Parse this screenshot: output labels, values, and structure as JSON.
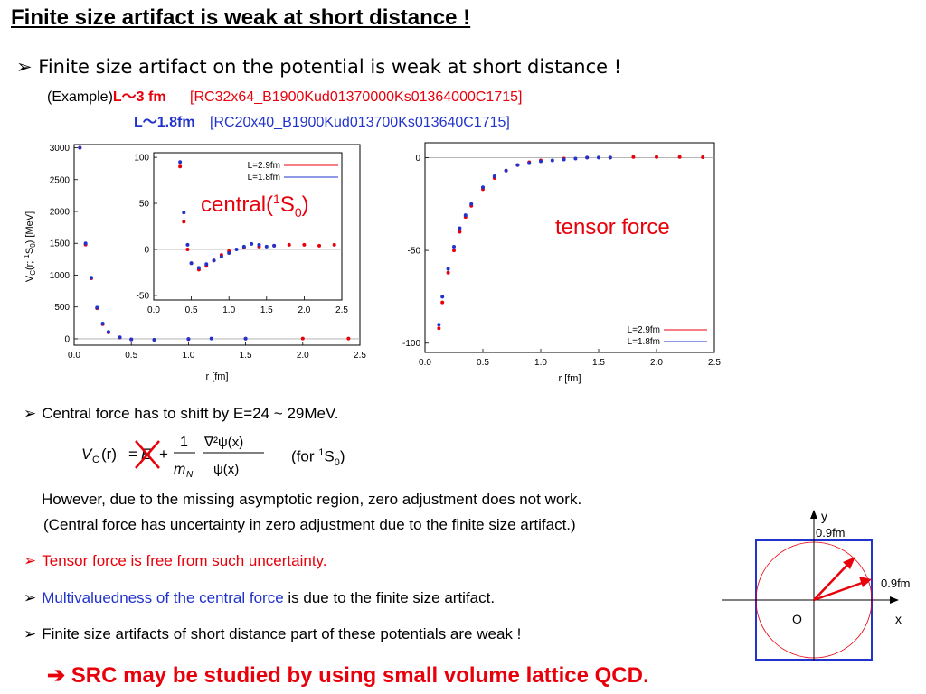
{
  "title": "Finite size artifact is weak at short distance !",
  "bullet1": "Finite size artifact on the potential is weak at short distance !",
  "example": {
    "prefix": "(Example)",
    "l3": "L～3 fm",
    "l3_conf": "[RC32x64_B1900Kud01370000Ks01364000C1715]",
    "l18": "L～1.8fm",
    "l18_conf": "[RC20x40_B1900Kud013700Ks013640C1715]"
  },
  "colors": {
    "red": "#e8000b",
    "blue": "#2233cc"
  },
  "chart_data": [
    {
      "type": "scatter",
      "title": "central(1S0)",
      "title_main": "central(",
      "title_sup": "1",
      "title_mid": "S",
      "title_sub": "0",
      "title_end": ")",
      "xlabel": "r [fm]",
      "ylabel_main": "V",
      "ylabel_sub": "C",
      "ylabel_rest": "(r; ",
      "ylabel_sup": "1",
      "ylabel_s": "S",
      "ylabel_sub2": "0",
      "ylabel_end": ") [MeV]",
      "xlim": [
        0,
        2.5
      ],
      "ylim": [
        -100,
        3050
      ],
      "xticks": [
        "0.0",
        "0.5",
        "1.0",
        "1.5",
        "2.0",
        "2.5"
      ],
      "yticks": [
        "0",
        "500",
        "1000",
        "1500",
        "2000",
        "2500",
        "3000"
      ],
      "inset": {
        "xlim": [
          0,
          2.5
        ],
        "ylim": [
          -55,
          105
        ],
        "xticks": [
          "0.0",
          "0.5",
          "1.0",
          "1.5",
          "2.0",
          "2.5"
        ],
        "yticks": [
          "-50",
          "0",
          "50",
          "100"
        ],
        "legend": [
          "L=2.9fm",
          "L=1.8fm"
        ],
        "series": [
          {
            "name": "L=2.9fm",
            "color": "#e8000b",
            "x": [
              0.35,
              0.4,
              0.45,
              0.5,
              0.6,
              0.7,
              0.8,
              0.9,
              1.0,
              1.2,
              1.4,
              1.6,
              1.8,
              2.0,
              2.2,
              2.4
            ],
            "y": [
              90,
              30,
              0,
              -15,
              -22,
              -18,
              -12,
              -6,
              -2,
              2,
              3,
              4,
              5,
              5,
              4,
              5
            ]
          },
          {
            "name": "L=1.8fm",
            "color": "#2233cc",
            "x": [
              0.35,
              0.4,
              0.45,
              0.5,
              0.6,
              0.7,
              0.8,
              0.9,
              1.0,
              1.1,
              1.2,
              1.3,
              1.4,
              1.5,
              1.6
            ],
            "y": [
              95,
              40,
              5,
              -15,
              -20,
              -16,
              -12,
              -8,
              -4,
              0,
              3,
              6,
              5,
              3,
              4
            ]
          }
        ]
      },
      "series": [
        {
          "name": "L=2.9fm",
          "color": "#e8000b",
          "x": [
            0.05,
            0.1,
            0.15,
            0.2,
            0.25,
            0.3,
            0.4,
            0.5,
            0.7,
            1.0,
            1.5,
            2.0,
            2.4
          ],
          "y": [
            3000,
            1480,
            950,
            480,
            230,
            100,
            20,
            -10,
            -15,
            -5,
            2,
            4,
            4
          ]
        },
        {
          "name": "L=1.8fm",
          "color": "#2233cc",
          "x": [
            0.05,
            0.1,
            0.15,
            0.2,
            0.25,
            0.3,
            0.4,
            0.5,
            0.7,
            1.0,
            1.2,
            1.5
          ],
          "y": [
            3000,
            1500,
            960,
            490,
            240,
            110,
            25,
            -8,
            -14,
            -3,
            4,
            3
          ]
        }
      ]
    },
    {
      "type": "scatter",
      "title": "tensor force",
      "xlabel": "r [fm]",
      "xlim": [
        0,
        2.5
      ],
      "ylim": [
        -105,
        8
      ],
      "xticks": [
        "0.0",
        "0.5",
        "1.0",
        "1.5",
        "2.0",
        "2.5"
      ],
      "yticks": [
        "0",
        "-50",
        "-100"
      ],
      "legend": [
        "L=2.9fm",
        "L=1.8fm"
      ],
      "series": [
        {
          "name": "L=2.9fm",
          "color": "#e8000b",
          "x": [
            0.12,
            0.15,
            0.2,
            0.25,
            0.3,
            0.35,
            0.4,
            0.5,
            0.6,
            0.7,
            0.8,
            0.9,
            1.0,
            1.2,
            1.4,
            1.6,
            1.8,
            2.0,
            2.2,
            2.4
          ],
          "y": [
            -92,
            -78,
            -62,
            -50,
            -40,
            -32,
            -26,
            -17,
            -11,
            -7,
            -4,
            -2.5,
            -1.5,
            -0.5,
            0,
            0,
            0.3,
            0.3,
            0.3,
            0.2
          ]
        },
        {
          "name": "L=1.8fm",
          "color": "#2233cc",
          "x": [
            0.12,
            0.15,
            0.2,
            0.25,
            0.3,
            0.35,
            0.4,
            0.5,
            0.6,
            0.7,
            0.8,
            0.9,
            1.0,
            1.1,
            1.2,
            1.3,
            1.4,
            1.5,
            1.6
          ],
          "y": [
            -90,
            -75,
            -60,
            -48,
            -38,
            -31,
            -25,
            -16,
            -10,
            -7,
            -4,
            -3,
            -2,
            -1.5,
            -1,
            -0.5,
            0,
            0,
            0
          ]
        }
      ]
    }
  ],
  "bullet2": "Central force has to shift by E=24 ~ 29MeV.",
  "formula": {
    "V": "V",
    "C": "C",
    "r_arg": "(r)",
    "eq": "=",
    "E": "E",
    "plus": "+",
    "one": "1",
    "mN": "m",
    "N": "N",
    "num": "∇²ψ(x)",
    "den": "ψ(x)"
  },
  "for_s0": {
    "prefix": "(for ",
    "sup": "1",
    "s": "S",
    "sub": "0",
    "end": ")"
  },
  "however1": "However, due to the missing asymptotic region, zero adjustment does not work.",
  "however2": "(Central force has uncertainty in zero adjustment due to the finite size artifact.)",
  "bullet3": "Tensor force is free from such uncertainty.",
  "bullet4_blue": "Multivaluedness of the central force",
  "bullet4_rest": " is due to the finite size artifact.",
  "bullet5": "Finite size artifacts of short distance part of these potentials are weak !",
  "conclusion": "SRC may be studied by using small volume lattice QCD.",
  "diagram": {
    "y": "y",
    "x": "x",
    "O": "O",
    "len_top": "0.9fm",
    "len_right": "0.9fm"
  }
}
